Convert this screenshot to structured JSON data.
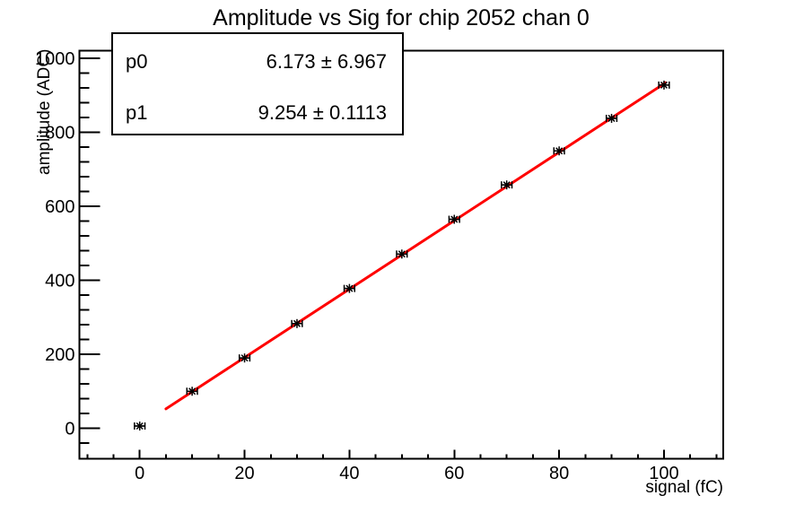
{
  "page": {
    "background": "#ffffff"
  },
  "title": "Amplitude vs Sig for chip 2052 chan 0",
  "stats_box": {
    "rows": [
      {
        "name": "p0",
        "value": "6.173 ± 6.967"
      },
      {
        "name": "p1",
        "value": "9.254 ± 0.1113"
      }
    ]
  },
  "chart_data": {
    "type": "scatter",
    "title": "Amplitude vs Sig for chip 2052 chan 0",
    "xlabel": "signal (fC)",
    "ylabel": "amplitude (ADC)",
    "x": [
      0,
      10,
      20,
      30,
      40,
      50,
      60,
      70,
      80,
      90,
      100
    ],
    "y": [
      6,
      100,
      190,
      283,
      378,
      471,
      565,
      658,
      750,
      838,
      928
    ],
    "x_error": 1.0,
    "marker": "asterisk-with-error-bars",
    "marker_color": "#000000",
    "fit": {
      "model": "p0 + p1*x",
      "p0": 6.173,
      "p0_err": 6.967,
      "p1": 9.254,
      "p1_err": 0.1113,
      "x_start": 5.0,
      "x_end": 100.3,
      "color": "#ff0000"
    },
    "xlim": [
      -11.5,
      111.3
    ],
    "ylim": [
      -82.5,
      1021
    ],
    "x_major_ticks": [
      0,
      20,
      40,
      60,
      80,
      100
    ],
    "x_minor_step": 5,
    "y_major_ticks": [
      0,
      200,
      400,
      600,
      800,
      1000
    ],
    "y_minor_step": 40,
    "grid": false,
    "legend_position": "none",
    "frame_color": "#000000"
  }
}
